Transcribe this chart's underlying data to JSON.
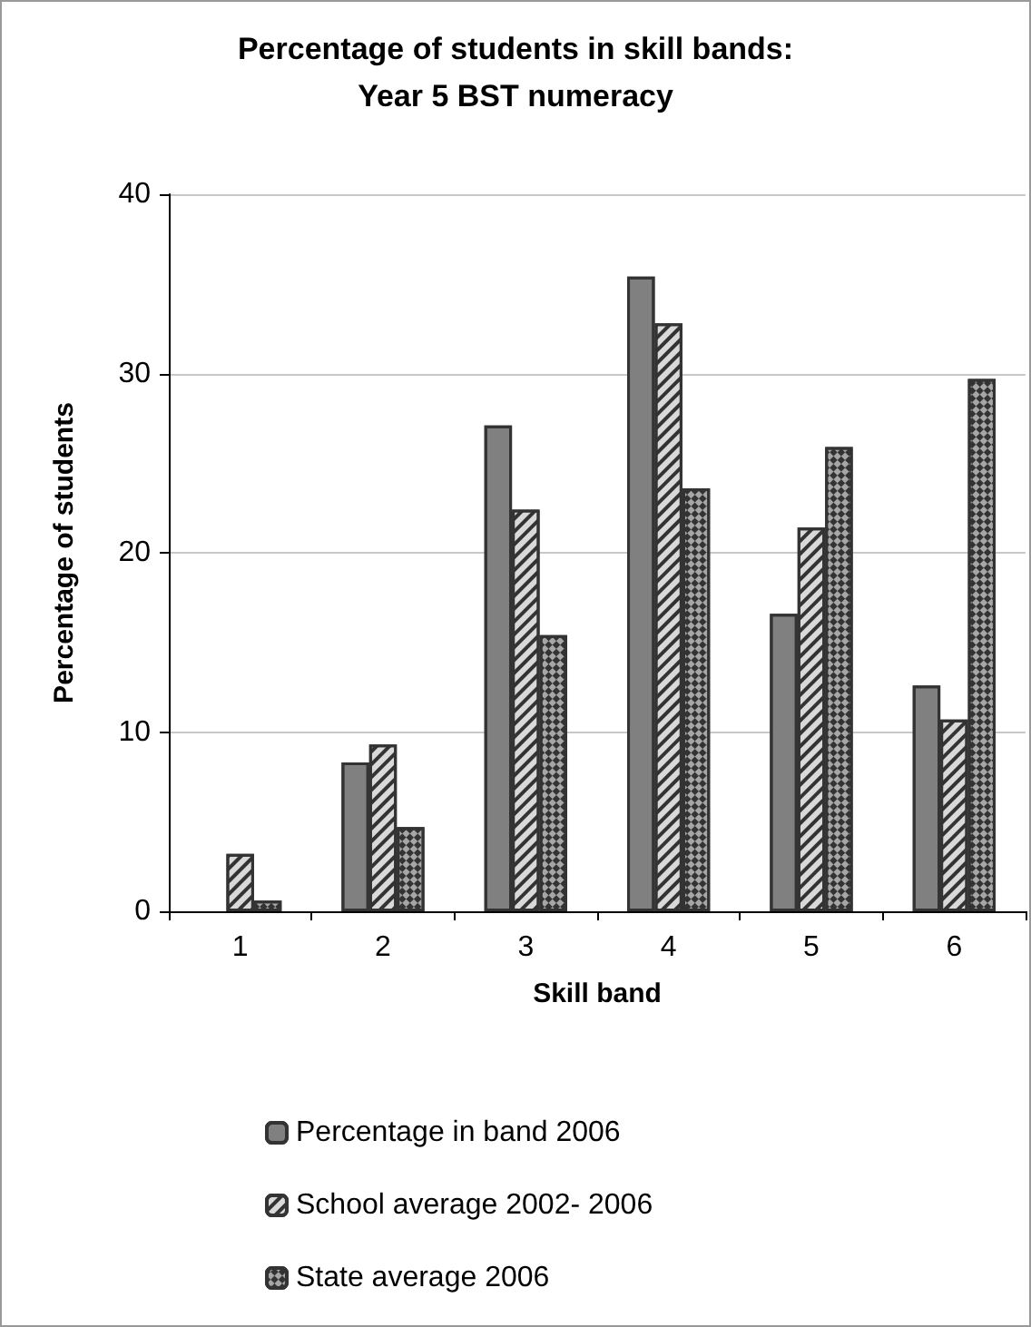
{
  "chart_data": {
    "type": "bar",
    "title": "Percentage of students in skill bands:\nYear 5 BST numeracy",
    "xlabel": "Skill band",
    "ylabel": "Percentage of students",
    "categories": [
      "1",
      "2",
      "3",
      "4",
      "5",
      "6"
    ],
    "series": [
      {
        "name": "Percentage in band 2006",
        "color": "#808080",
        "values": [
          null,
          8.3,
          27.1,
          35.4,
          16.6,
          12.6
        ]
      },
      {
        "name": "School average 2002- 2006",
        "color": "#d9d9d9",
        "values": [
          3.2,
          9.3,
          22.4,
          32.8,
          21.4,
          10.7
        ]
      },
      {
        "name": "State average 2006",
        "color": "#a6a6a6",
        "values": [
          0.6,
          4.7,
          15.4,
          23.6,
          25.9,
          29.7
        ]
      }
    ],
    "ylim": [
      0,
      40
    ],
    "yticks": [
      0,
      10,
      20,
      30,
      40
    ],
    "grid": "y",
    "legend": "bottom"
  }
}
